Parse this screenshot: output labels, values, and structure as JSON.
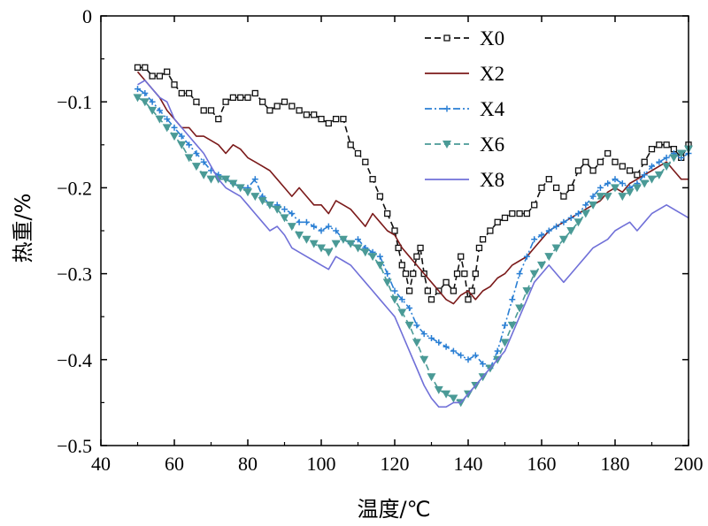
{
  "chart_data": {
    "type": "line",
    "title": "",
    "xlabel": "温度/℃",
    "ylabel": "热重/%",
    "xlim": [
      40,
      200
    ],
    "ylim": [
      -0.5,
      0
    ],
    "xticks": [
      "40",
      "60",
      "80",
      "100",
      "120",
      "140",
      "160",
      "180",
      "200"
    ],
    "yticks": [
      "0",
      "−0.1",
      "−0.2",
      "−0.3",
      "−0.4",
      "−0.5"
    ],
    "legend_position": "top-right",
    "series": [
      {
        "name": "X0",
        "color": "#111111",
        "line": "dashed",
        "marker": "square-open",
        "x": [
          50,
          52,
          54,
          56,
          58,
          60,
          62,
          64,
          66,
          68,
          70,
          72,
          74,
          76,
          78,
          80,
          82,
          84,
          86,
          88,
          90,
          92,
          94,
          96,
          98,
          100,
          102,
          104,
          106,
          108,
          110,
          112,
          114,
          116,
          118,
          120,
          121,
          122,
          123,
          124,
          125,
          126,
          127,
          128,
          129,
          130,
          132,
          134,
          136,
          137,
          138,
          139,
          140,
          141,
          142,
          143,
          144,
          146,
          148,
          150,
          152,
          154,
          156,
          158,
          160,
          162,
          164,
          166,
          168,
          170,
          172,
          174,
          176,
          178,
          180,
          182,
          184,
          186,
          188,
          190,
          192,
          194,
          196,
          198,
          200
        ],
        "y": [
          -0.06,
          -0.06,
          -0.07,
          -0.07,
          -0.065,
          -0.08,
          -0.09,
          -0.09,
          -0.1,
          -0.11,
          -0.11,
          -0.12,
          -0.1,
          -0.095,
          -0.095,
          -0.095,
          -0.09,
          -0.1,
          -0.11,
          -0.105,
          -0.1,
          -0.105,
          -0.11,
          -0.115,
          -0.115,
          -0.12,
          -0.125,
          -0.12,
          -0.12,
          -0.15,
          -0.16,
          -0.17,
          -0.19,
          -0.21,
          -0.23,
          -0.25,
          -0.27,
          -0.29,
          -0.3,
          -0.32,
          -0.3,
          -0.28,
          -0.27,
          -0.3,
          -0.32,
          -0.33,
          -0.32,
          -0.31,
          -0.32,
          -0.3,
          -0.28,
          -0.3,
          -0.33,
          -0.32,
          -0.3,
          -0.27,
          -0.26,
          -0.25,
          -0.24,
          -0.235,
          -0.23,
          -0.23,
          -0.23,
          -0.22,
          -0.2,
          -0.19,
          -0.2,
          -0.21,
          -0.2,
          -0.18,
          -0.17,
          -0.18,
          -0.17,
          -0.16,
          -0.17,
          -0.175,
          -0.18,
          -0.185,
          -0.17,
          -0.155,
          -0.15,
          -0.15,
          -0.155,
          -0.165,
          -0.15
        ]
      },
      {
        "name": "X2",
        "color": "#7b1a1a",
        "line": "solid",
        "marker": "none",
        "x": [
          50,
          52,
          54,
          56,
          58,
          60,
          62,
          64,
          66,
          68,
          70,
          72,
          74,
          76,
          78,
          80,
          82,
          84,
          86,
          88,
          90,
          92,
          94,
          96,
          98,
          100,
          102,
          104,
          106,
          108,
          110,
          112,
          114,
          116,
          118,
          120,
          122,
          124,
          126,
          128,
          130,
          132,
          134,
          136,
          138,
          140,
          142,
          144,
          146,
          148,
          150,
          152,
          154,
          156,
          158,
          160,
          162,
          164,
          166,
          168,
          170,
          172,
          174,
          176,
          178,
          180,
          182,
          184,
          186,
          188,
          190,
          192,
          194,
          196,
          198,
          200
        ],
        "y": [
          -0.065,
          -0.075,
          -0.085,
          -0.095,
          -0.11,
          -0.12,
          -0.13,
          -0.13,
          -0.14,
          -0.14,
          -0.145,
          -0.15,
          -0.16,
          -0.15,
          -0.155,
          -0.165,
          -0.17,
          -0.175,
          -0.18,
          -0.19,
          -0.2,
          -0.21,
          -0.2,
          -0.21,
          -0.22,
          -0.22,
          -0.23,
          -0.215,
          -0.22,
          -0.225,
          -0.235,
          -0.245,
          -0.23,
          -0.24,
          -0.25,
          -0.255,
          -0.27,
          -0.28,
          -0.29,
          -0.3,
          -0.31,
          -0.32,
          -0.33,
          -0.335,
          -0.325,
          -0.32,
          -0.33,
          -0.32,
          -0.315,
          -0.305,
          -0.3,
          -0.29,
          -0.285,
          -0.28,
          -0.27,
          -0.26,
          -0.25,
          -0.245,
          -0.24,
          -0.235,
          -0.23,
          -0.225,
          -0.22,
          -0.215,
          -0.205,
          -0.2,
          -0.205,
          -0.195,
          -0.19,
          -0.185,
          -0.18,
          -0.175,
          -0.17,
          -0.18,
          -0.19,
          -0.19
        ]
      },
      {
        "name": "X4",
        "color": "#2a7fd4",
        "line": "dashdot",
        "marker": "plus",
        "x": [
          50,
          52,
          54,
          56,
          58,
          60,
          62,
          64,
          66,
          68,
          70,
          72,
          74,
          76,
          78,
          80,
          82,
          84,
          86,
          88,
          90,
          92,
          94,
          96,
          98,
          100,
          102,
          104,
          106,
          108,
          110,
          112,
          114,
          116,
          118,
          120,
          122,
          124,
          126,
          128,
          130,
          132,
          134,
          136,
          138,
          140,
          142,
          144,
          146,
          148,
          150,
          152,
          154,
          156,
          158,
          160,
          162,
          164,
          166,
          168,
          170,
          172,
          174,
          176,
          178,
          180,
          182,
          184,
          186,
          188,
          190,
          192,
          194,
          196,
          198,
          200
        ],
        "y": [
          -0.085,
          -0.09,
          -0.1,
          -0.11,
          -0.12,
          -0.13,
          -0.14,
          -0.15,
          -0.16,
          -0.17,
          -0.18,
          -0.185,
          -0.19,
          -0.195,
          -0.2,
          -0.2,
          -0.19,
          -0.21,
          -0.22,
          -0.22,
          -0.225,
          -0.23,
          -0.24,
          -0.24,
          -0.245,
          -0.25,
          -0.245,
          -0.25,
          -0.26,
          -0.265,
          -0.26,
          -0.27,
          -0.275,
          -0.28,
          -0.3,
          -0.32,
          -0.33,
          -0.34,
          -0.36,
          -0.37,
          -0.375,
          -0.38,
          -0.385,
          -0.39,
          -0.395,
          -0.4,
          -0.395,
          -0.405,
          -0.41,
          -0.39,
          -0.36,
          -0.33,
          -0.3,
          -0.28,
          -0.26,
          -0.255,
          -0.25,
          -0.245,
          -0.24,
          -0.235,
          -0.23,
          -0.22,
          -0.21,
          -0.2,
          -0.195,
          -0.19,
          -0.195,
          -0.2,
          -0.195,
          -0.185,
          -0.175,
          -0.17,
          -0.165,
          -0.16,
          -0.165,
          -0.16
        ]
      },
      {
        "name": "X6",
        "color": "#4a9a96",
        "line": "dashed",
        "marker": "triangle-down",
        "x": [
          50,
          52,
          54,
          56,
          58,
          60,
          62,
          64,
          66,
          68,
          70,
          72,
          74,
          76,
          78,
          80,
          82,
          84,
          86,
          88,
          90,
          92,
          94,
          96,
          98,
          100,
          102,
          104,
          106,
          108,
          110,
          112,
          114,
          116,
          118,
          120,
          122,
          124,
          126,
          128,
          130,
          132,
          134,
          136,
          138,
          140,
          142,
          144,
          146,
          148,
          150,
          152,
          154,
          156,
          158,
          160,
          162,
          164,
          166,
          168,
          170,
          172,
          174,
          176,
          178,
          180,
          182,
          184,
          186,
          188,
          190,
          192,
          194,
          196,
          198,
          200
        ],
        "y": [
          -0.095,
          -0.1,
          -0.11,
          -0.12,
          -0.13,
          -0.14,
          -0.15,
          -0.165,
          -0.175,
          -0.185,
          -0.19,
          -0.19,
          -0.19,
          -0.195,
          -0.2,
          -0.205,
          -0.21,
          -0.215,
          -0.22,
          -0.225,
          -0.235,
          -0.245,
          -0.255,
          -0.26,
          -0.265,
          -0.27,
          -0.275,
          -0.265,
          -0.26,
          -0.265,
          -0.27,
          -0.275,
          -0.28,
          -0.29,
          -0.31,
          -0.33,
          -0.345,
          -0.36,
          -0.38,
          -0.4,
          -0.42,
          -0.435,
          -0.44,
          -0.445,
          -0.45,
          -0.44,
          -0.43,
          -0.42,
          -0.41,
          -0.4,
          -0.38,
          -0.36,
          -0.34,
          -0.32,
          -0.3,
          -0.29,
          -0.28,
          -0.27,
          -0.26,
          -0.25,
          -0.24,
          -0.23,
          -0.22,
          -0.21,
          -0.21,
          -0.2,
          -0.21,
          -0.205,
          -0.2,
          -0.195,
          -0.19,
          -0.185,
          -0.175,
          -0.165,
          -0.16,
          -0.155
        ]
      },
      {
        "name": "X8",
        "color": "#7070d8",
        "line": "solid",
        "marker": "none",
        "x": [
          50,
          52,
          54,
          56,
          58,
          60,
          62,
          64,
          66,
          68,
          70,
          72,
          74,
          76,
          78,
          80,
          82,
          84,
          86,
          88,
          90,
          92,
          94,
          96,
          98,
          100,
          102,
          104,
          106,
          108,
          110,
          112,
          114,
          116,
          118,
          120,
          122,
          124,
          126,
          128,
          130,
          132,
          134,
          136,
          138,
          140,
          142,
          144,
          146,
          148,
          150,
          152,
          154,
          156,
          158,
          160,
          162,
          164,
          166,
          168,
          170,
          172,
          174,
          176,
          178,
          180,
          182,
          184,
          186,
          188,
          190,
          192,
          194,
          196,
          198,
          200
        ],
        "y": [
          -0.08,
          -0.075,
          -0.085,
          -0.095,
          -0.1,
          -0.12,
          -0.13,
          -0.14,
          -0.15,
          -0.16,
          -0.175,
          -0.19,
          -0.2,
          -0.205,
          -0.21,
          -0.22,
          -0.23,
          -0.24,
          -0.25,
          -0.245,
          -0.255,
          -0.27,
          -0.275,
          -0.28,
          -0.285,
          -0.29,
          -0.295,
          -0.28,
          -0.285,
          -0.29,
          -0.3,
          -0.31,
          -0.32,
          -0.33,
          -0.34,
          -0.35,
          -0.37,
          -0.39,
          -0.41,
          -0.43,
          -0.445,
          -0.455,
          -0.455,
          -0.45,
          -0.45,
          -0.44,
          -0.43,
          -0.42,
          -0.41,
          -0.4,
          -0.39,
          -0.37,
          -0.35,
          -0.33,
          -0.31,
          -0.3,
          -0.29,
          -0.3,
          -0.31,
          -0.3,
          -0.29,
          -0.28,
          -0.27,
          -0.265,
          -0.26,
          -0.25,
          -0.245,
          -0.24,
          -0.25,
          -0.24,
          -0.23,
          -0.225,
          -0.22,
          -0.225,
          -0.23,
          -0.235
        ]
      }
    ]
  }
}
